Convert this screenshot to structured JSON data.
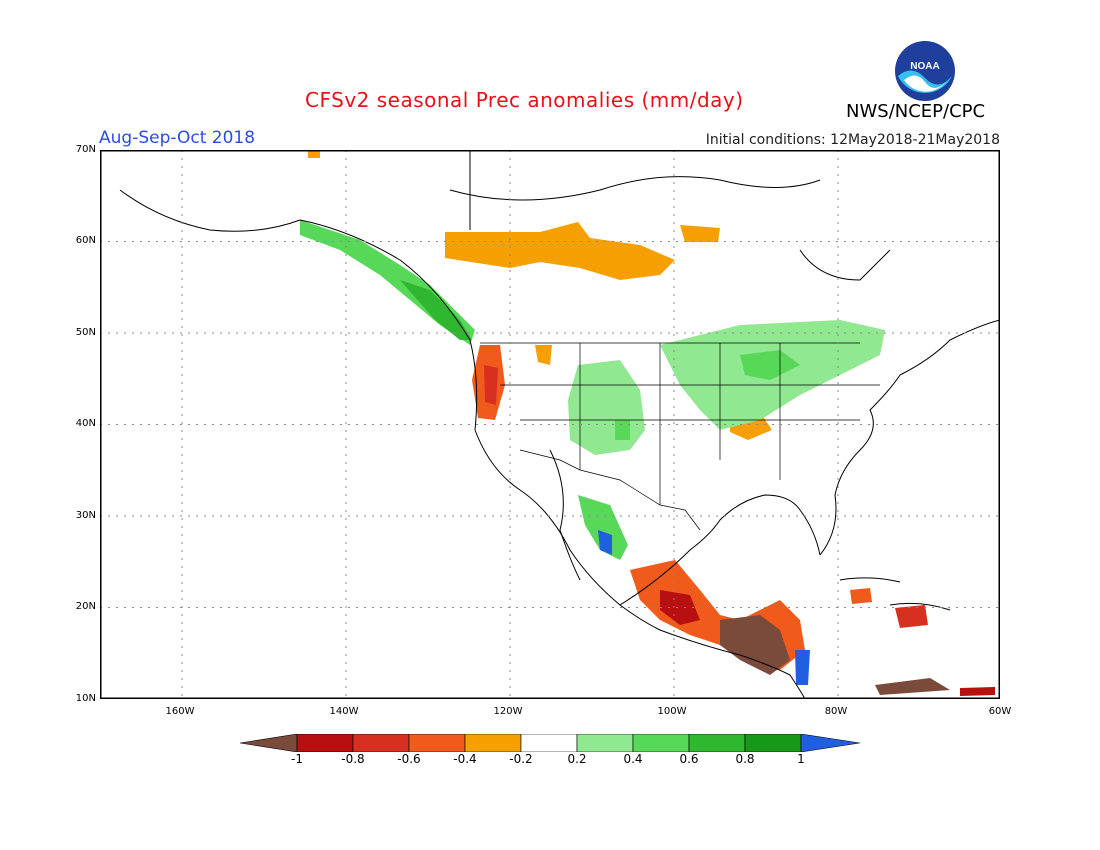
{
  "title": "CFSv2 seasonal Prec anomalies (mm/day)",
  "season": "Aug-Sep-Oct 2018",
  "initial_conditions": "Initial conditions: 12May2018-21May2018",
  "agency": "NWS/NCEP/CPC",
  "logo_text": "NOAA",
  "lat_labels": [
    "70N",
    "60N",
    "50N",
    "40N",
    "30N",
    "20N",
    "10N"
  ],
  "lon_labels": [
    "160W",
    "140W",
    "120W",
    "100W",
    "80W",
    "60W"
  ],
  "colorbar": {
    "labels": [
      "-1",
      "-0.8",
      "-0.6",
      "-0.4",
      "-0.2",
      "0.2",
      "0.4",
      "0.6",
      "0.8",
      "1"
    ],
    "colors": [
      "#7a4a3a",
      "#b81010",
      "#d83020",
      "#f05a1a",
      "#f5a000",
      "#ffffff",
      "#90e890",
      "#58d858",
      "#2fb82f",
      "#189818",
      "#2060e0"
    ]
  }
}
